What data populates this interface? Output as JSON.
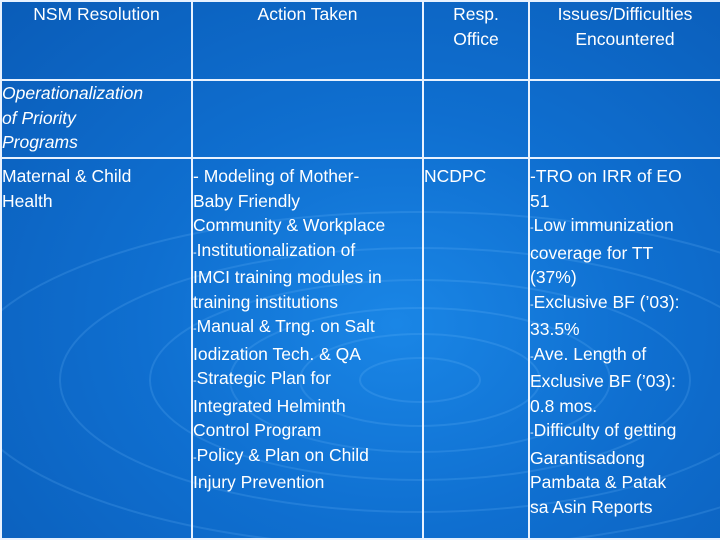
{
  "headers": {
    "col1": "NSM Resolution",
    "col2": "Action Taken",
    "col3_line1": "Resp.",
    "col3_line2": "Office",
    "col4_line1": "Issues/Difficulties",
    "col4_line2": "Encountered"
  },
  "section": {
    "line1": "Operationalization",
    "line2": "of Priority",
    "line3": "Programs"
  },
  "row": {
    "resolution_line1": "Maternal & Child",
    "resolution_line2": "Health",
    "office": "NCDPC"
  },
  "actions": {
    "a1": "- Modeling of Mother-",
    "a2": "Baby Friendly",
    "a3": "Community & Workplace",
    "a4_dash": "-",
    "a4": "Institutionalization of",
    "a5": "IMCI training modules in",
    "a6": "training institutions",
    "a7_dash": "-",
    "a7": "Manual & Trng. on Salt",
    "a8": "Iodization Tech. & QA",
    "a9_dash": "-",
    "a9": "Strategic Plan for",
    "a10": "Integrated Helminth",
    "a11": "Control Program",
    "a12_dash": "-",
    "a12": "Policy & Plan on Child",
    "a13": "Injury Prevention"
  },
  "issues": {
    "i1": "-TRO on IRR of EO",
    "i2": "51",
    "i3_dash": "-",
    "i3": "Low immunization",
    "i4": "coverage for TT",
    "i5": "(37%)",
    "i6_dash": "-",
    "i6": "Exclusive BF (’03):",
    "i7": "33.5%",
    "i8_dash": "-",
    "i8": "Ave. Length of",
    "i9": "Exclusive BF (’03):",
    "i10": "0.8 mos.",
    "i11_dash": "-",
    "i11": "Difficulty of getting",
    "i12": "Garantisadong",
    "i13": "Pambata & Patak",
    "i14": "sa Asin Reports"
  },
  "colors": {
    "background": "#0f6fd0",
    "text": "#ffffff",
    "grid": "#e8f2ff"
  }
}
